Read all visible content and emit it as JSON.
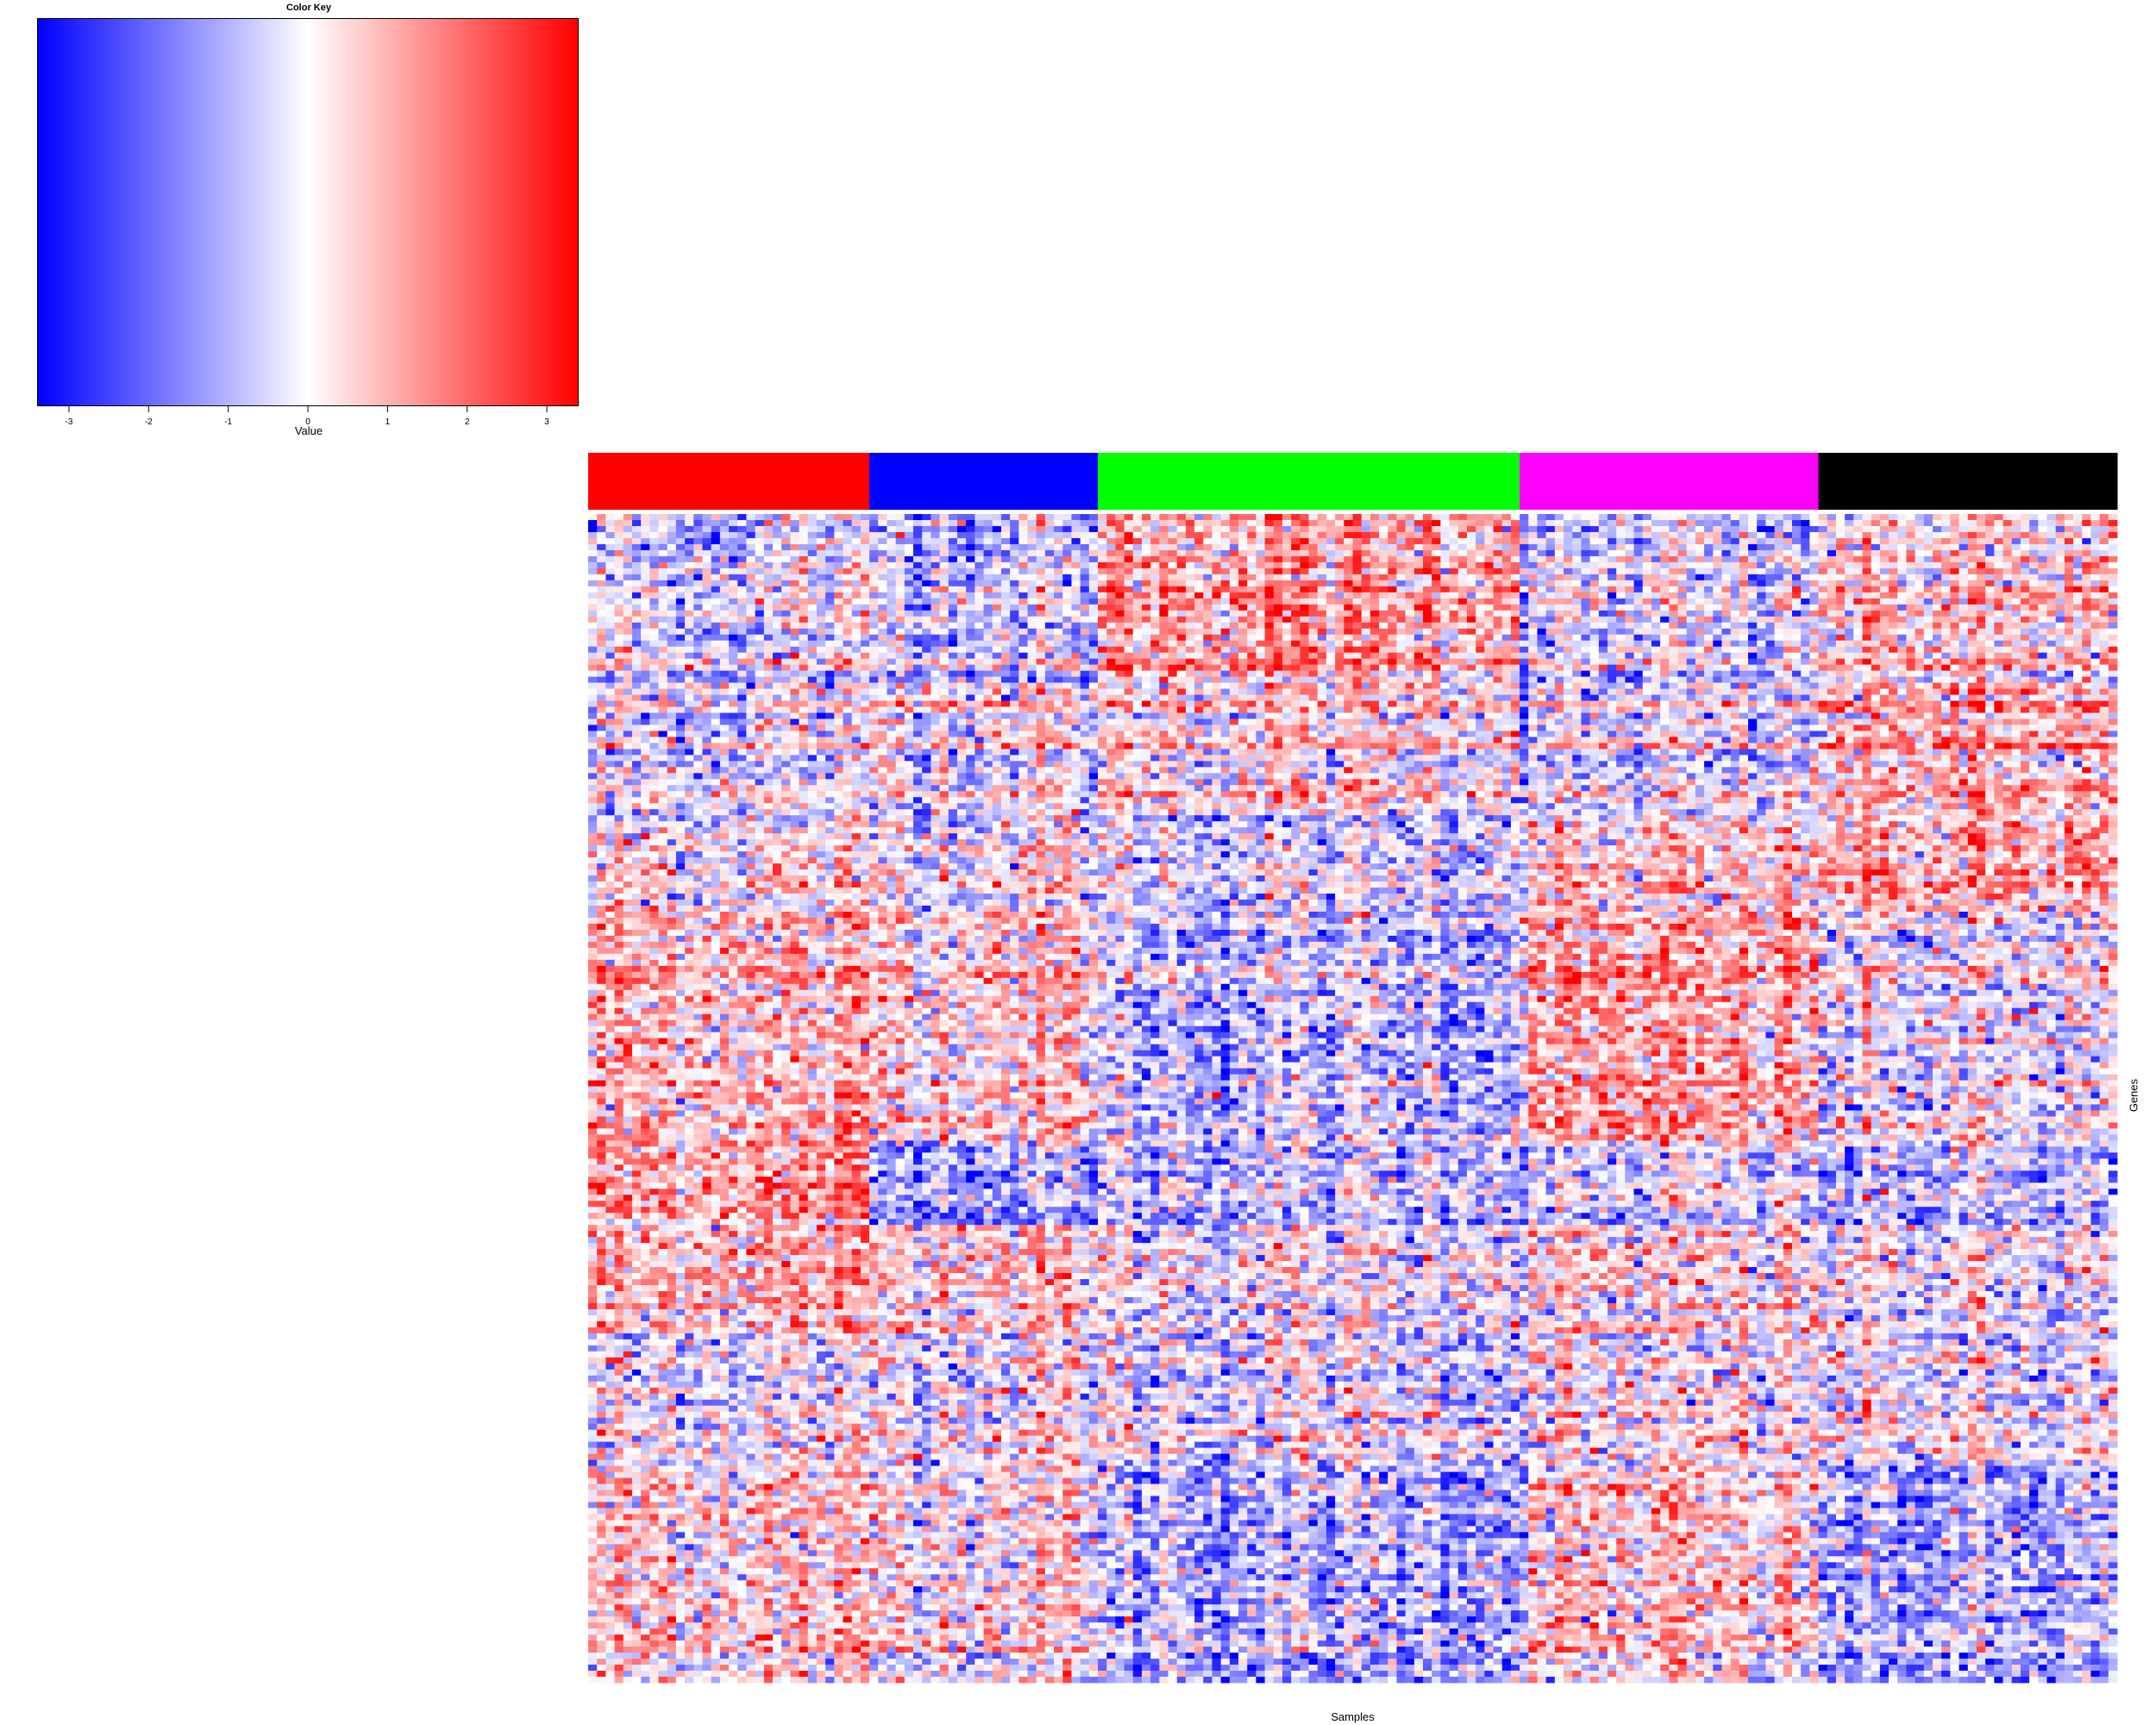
{
  "chart_data": {
    "type": "heatmap",
    "title": "",
    "xlabel": "Samples",
    "ylabel": "Genes",
    "color_key": {
      "title": "Color Key",
      "label": "Value",
      "ticks": [
        -3,
        -2,
        -1,
        0,
        1,
        2,
        3
      ],
      "range": [
        -3.4,
        3.4
      ],
      "colors": {
        "low": "#0000ff",
        "mid": "#ffffff",
        "high": "#ff0000"
      }
    },
    "column_groups": [
      {
        "color": "#ff0000",
        "samples": 32
      },
      {
        "color": "#0000ff",
        "samples": 26
      },
      {
        "color": "#00ff00",
        "samples": 48
      },
      {
        "color": "#ff00ff",
        "samples": 34
      },
      {
        "color": "#000000",
        "samples": 34
      }
    ],
    "row_blocks": [
      {
        "rows": 28,
        "means": [
          -0.6,
          -0.7,
          1.0,
          -0.8,
          0.3
        ]
      },
      {
        "rows": 22,
        "means": [
          -0.3,
          0.2,
          0.4,
          -0.4,
          0.9
        ]
      },
      {
        "rows": 16,
        "means": [
          0.2,
          0.3,
          -0.3,
          0.5,
          1.1
        ]
      },
      {
        "rows": 38,
        "means": [
          0.7,
          0.5,
          -0.9,
          0.8,
          -0.4
        ]
      },
      {
        "rows": 14,
        "means": [
          1.3,
          -1.0,
          -0.7,
          -0.5,
          -0.9
        ]
      },
      {
        "rows": 18,
        "means": [
          0.8,
          0.6,
          -0.2,
          0.1,
          -0.3
        ]
      },
      {
        "rows": 22,
        "means": [
          -0.3,
          0.0,
          -0.4,
          -0.2,
          -0.3
        ]
      },
      {
        "rows": 36,
        "means": [
          0.7,
          0.5,
          -0.8,
          0.5,
          -0.9
        ]
      }
    ]
  }
}
